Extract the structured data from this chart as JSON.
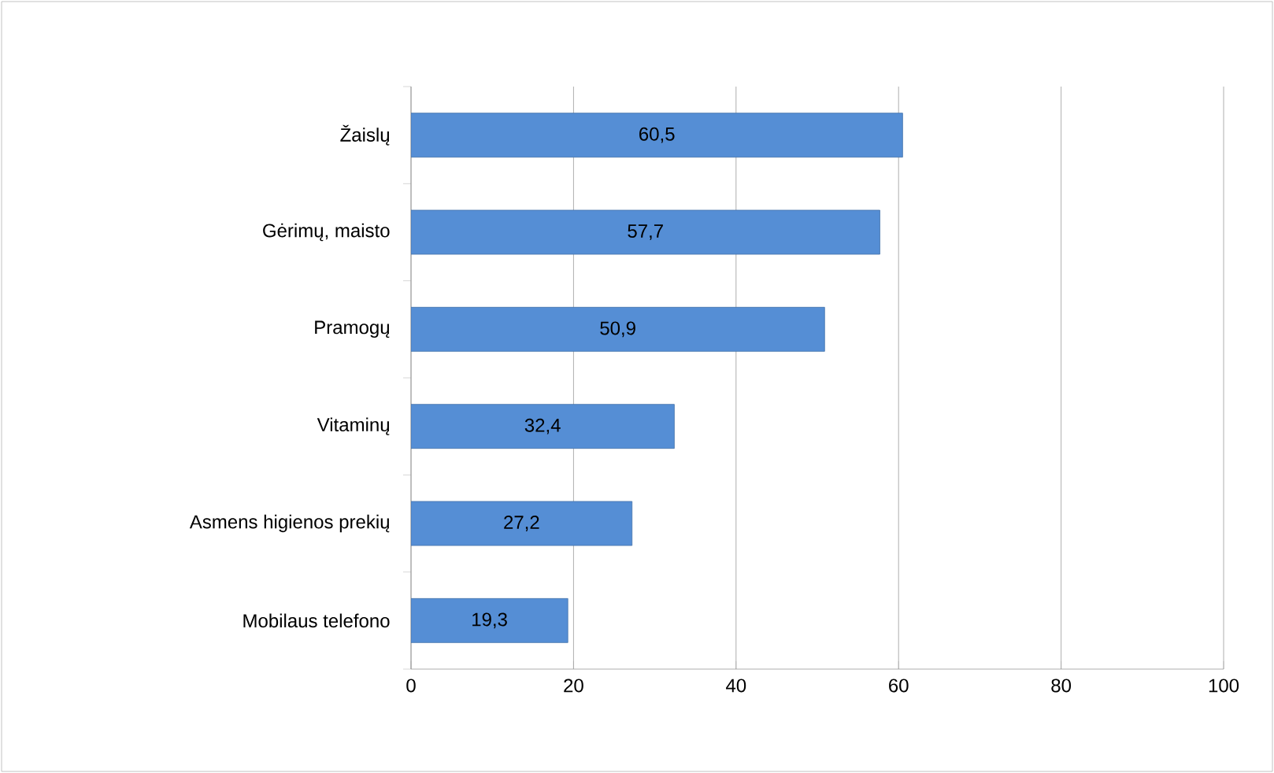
{
  "chart_data": {
    "type": "bar",
    "orientation": "horizontal",
    "categories": [
      "Žaislų",
      "Gėrimų, maisto",
      "Pramogų",
      "Vitaminų",
      "Asmens higienos prekių",
      "Mobilaus telefono"
    ],
    "values": [
      60.5,
      57.7,
      50.9,
      32.4,
      27.2,
      19.3
    ],
    "value_labels": [
      "60,5",
      "57,7",
      "50,9",
      "32,4",
      "27,2",
      "19,3"
    ],
    "color": "#558ed5",
    "xlim": [
      0,
      100
    ],
    "xticks": [
      0,
      20,
      40,
      60,
      80,
      100
    ],
    "grid": "x"
  }
}
